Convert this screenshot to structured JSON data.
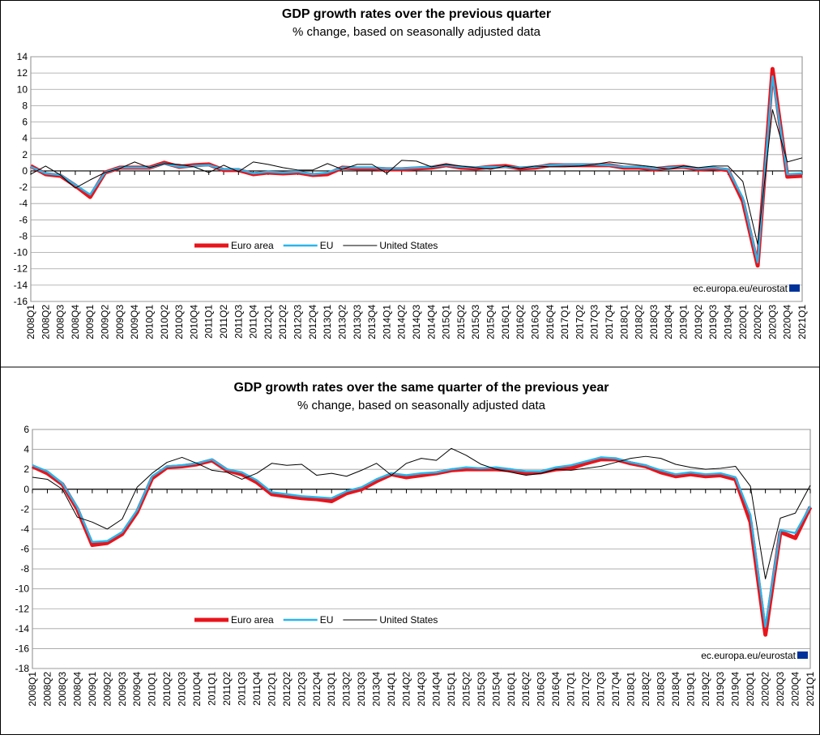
{
  "chart_data": [
    {
      "type": "line",
      "title": "GDP growth rates over the previous quarter",
      "subtitle": "% change, based on seasonally adjusted data",
      "categories": [
        "2008Q1",
        "2008Q2",
        "2008Q3",
        "2008Q4",
        "2009Q1",
        "2009Q2",
        "2009Q3",
        "2009Q4",
        "2010Q1",
        "2010Q2",
        "2010Q3",
        "2010Q4",
        "2011Q1",
        "2011Q2",
        "2011Q3",
        "2011Q4",
        "2012Q1",
        "2012Q2",
        "2012Q3",
        "2012Q4",
        "2013Q1",
        "2013Q2",
        "2013Q3",
        "2013Q4",
        "2014Q1",
        "2014Q2",
        "2014Q3",
        "2014Q4",
        "2015Q1",
        "2015Q2",
        "2015Q3",
        "2015Q4",
        "2016Q1",
        "2016Q2",
        "2016Q3",
        "2016Q4",
        "2017Q1",
        "2017Q2",
        "2017Q3",
        "2017Q4",
        "2018Q1",
        "2018Q2",
        "2018Q3",
        "2018Q4",
        "2019Q1",
        "2019Q2",
        "2019Q3",
        "2019Q4",
        "2020Q1",
        "2020Q2",
        "2020Q3",
        "2020Q4",
        "2021Q1"
      ],
      "series": [
        {
          "name": "Euro area",
          "color": "#e8141c",
          "values": [
            0.6,
            -0.4,
            -0.6,
            -1.8,
            -3.2,
            -0.2,
            0.4,
            0.4,
            0.4,
            1.0,
            0.5,
            0.7,
            0.8,
            0.1,
            0.1,
            -0.4,
            -0.2,
            -0.3,
            -0.2,
            -0.5,
            -0.4,
            0.4,
            0.3,
            0.3,
            0.2,
            0.2,
            0.3,
            0.4,
            0.7,
            0.4,
            0.3,
            0.5,
            0.6,
            0.3,
            0.4,
            0.7,
            0.7,
            0.7,
            0.7,
            0.7,
            0.4,
            0.4,
            0.2,
            0.4,
            0.5,
            0.2,
            0.3,
            0.1,
            -3.7,
            -11.6,
            12.5,
            -0.7,
            -0.6
          ]
        },
        {
          "name": "EU",
          "color": "#29b6ea",
          "values": [
            0.5,
            -0.3,
            -0.5,
            -1.7,
            -2.9,
            -0.2,
            0.4,
            0.4,
            0.4,
            0.9,
            0.5,
            0.6,
            0.7,
            0.2,
            0.2,
            -0.3,
            -0.1,
            -0.2,
            -0.1,
            -0.4,
            -0.2,
            0.4,
            0.4,
            0.4,
            0.3,
            0.3,
            0.4,
            0.5,
            0.7,
            0.5,
            0.4,
            0.5,
            0.5,
            0.4,
            0.5,
            0.7,
            0.8,
            0.8,
            0.8,
            0.7,
            0.5,
            0.5,
            0.3,
            0.4,
            0.5,
            0.3,
            0.4,
            0.2,
            -3.3,
            -11.2,
            11.6,
            -0.4,
            -0.3
          ]
        },
        {
          "name": "United States",
          "color": "#000000",
          "values": [
            -0.4,
            0.6,
            -0.5,
            -2.1,
            -1.1,
            -0.2,
            0.3,
            1.1,
            0.4,
            0.9,
            0.8,
            0.5,
            -0.2,
            0.7,
            -0.1,
            1.1,
            0.8,
            0.4,
            0.1,
            0.1,
            0.9,
            0.2,
            0.8,
            0.8,
            -0.3,
            1.3,
            1.2,
            0.5,
            0.8,
            0.6,
            0.4,
            0.2,
            0.6,
            0.3,
            0.6,
            0.5,
            0.5,
            0.6,
            0.8,
            1.1,
            0.9,
            0.7,
            0.5,
            0.2,
            0.6,
            0.4,
            0.6,
            0.6,
            -1.3,
            -9.0,
            7.5,
            1.1,
            1.6
          ]
        }
      ],
      "ylim": [
        -16,
        14
      ],
      "yticks": [
        -16,
        -14,
        -12,
        -10,
        -8,
        -6,
        -4,
        -2,
        0,
        2,
        4,
        6,
        8,
        10,
        12,
        14
      ],
      "grid": true,
      "legend": "lower left",
      "source": "ec.europa.eu/eurostat"
    },
    {
      "type": "line",
      "title": "GDP growth rates over the same quarter of the previous year",
      "subtitle": "% change, based on seasonally adjusted data",
      "categories": [
        "2008Q1",
        "2008Q2",
        "2008Q3",
        "2008Q4",
        "2009Q1",
        "2009Q2",
        "2009Q3",
        "2009Q4",
        "2010Q1",
        "2010Q2",
        "2010Q3",
        "2010Q4",
        "2011Q1",
        "2011Q2",
        "2011Q3",
        "2011Q4",
        "2012Q1",
        "2012Q2",
        "2012Q3",
        "2012Q4",
        "2013Q1",
        "2013Q2",
        "2013Q3",
        "2013Q4",
        "2014Q1",
        "2014Q2",
        "2014Q3",
        "2014Q4",
        "2015Q1",
        "2015Q2",
        "2015Q3",
        "2015Q4",
        "2016Q1",
        "2016Q2",
        "2016Q3",
        "2016Q4",
        "2017Q1",
        "2017Q2",
        "2017Q3",
        "2017Q4",
        "2018Q1",
        "2018Q2",
        "2018Q3",
        "2018Q4",
        "2019Q1",
        "2019Q2",
        "2019Q3",
        "2019Q4",
        "2020Q1",
        "2020Q2",
        "2020Q3",
        "2020Q4",
        "2021Q1"
      ],
      "series": [
        {
          "name": "Euro area",
          "color": "#e8141c",
          "values": [
            2.3,
            1.6,
            0.5,
            -2.0,
            -5.6,
            -5.4,
            -4.5,
            -2.3,
            1.1,
            2.2,
            2.3,
            2.5,
            2.9,
            1.9,
            1.5,
            0.7,
            -0.5,
            -0.7,
            -0.9,
            -1.0,
            -1.2,
            -0.4,
            0.0,
            0.8,
            1.5,
            1.2,
            1.4,
            1.6,
            1.9,
            2.0,
            2.0,
            2.0,
            1.9,
            1.6,
            1.7,
            2.0,
            2.1,
            2.6,
            3.0,
            3.0,
            2.6,
            2.3,
            1.7,
            1.3,
            1.5,
            1.3,
            1.4,
            1.0,
            -3.3,
            -14.6,
            -4.3,
            -4.9,
            -1.8
          ]
        },
        {
          "name": "EU",
          "color": "#29b6ea",
          "values": [
            2.4,
            1.8,
            0.6,
            -1.8,
            -5.3,
            -5.2,
            -4.3,
            -2.1,
            1.3,
            2.3,
            2.4,
            2.6,
            3.0,
            2.0,
            1.7,
            0.9,
            -0.3,
            -0.5,
            -0.7,
            -0.8,
            -0.9,
            -0.2,
            0.2,
            1.0,
            1.6,
            1.4,
            1.6,
            1.7,
            2.0,
            2.2,
            2.1,
            2.2,
            2.0,
            1.8,
            1.8,
            2.2,
            2.4,
            2.8,
            3.2,
            3.1,
            2.7,
            2.4,
            1.9,
            1.5,
            1.7,
            1.5,
            1.6,
            1.2,
            -2.6,
            -13.8,
            -4.1,
            -4.4,
            -1.7
          ]
        },
        {
          "name": "United States",
          "color": "#000000",
          "values": [
            1.2,
            1.0,
            0.0,
            -2.8,
            -3.3,
            -4.0,
            -3.0,
            0.2,
            1.6,
            2.7,
            3.2,
            2.6,
            1.9,
            1.7,
            1.0,
            1.6,
            2.6,
            2.4,
            2.5,
            1.4,
            1.6,
            1.3,
            1.9,
            2.6,
            1.4,
            2.6,
            3.1,
            2.9,
            4.1,
            3.4,
            2.5,
            2.0,
            1.7,
            1.4,
            1.6,
            2.0,
            1.9,
            2.1,
            2.3,
            2.7,
            3.1,
            3.3,
            3.1,
            2.5,
            2.2,
            2.0,
            2.1,
            2.3,
            0.3,
            -9.0,
            -2.9,
            -2.4,
            0.4
          ]
        }
      ],
      "ylim": [
        -18,
        6
      ],
      "yticks": [
        -18,
        -16,
        -14,
        -12,
        -10,
        -8,
        -6,
        -4,
        -2,
        0,
        2,
        4,
        6
      ],
      "grid": true,
      "legend": "lower left",
      "source": "ec.europa.eu/eurostat"
    }
  ]
}
